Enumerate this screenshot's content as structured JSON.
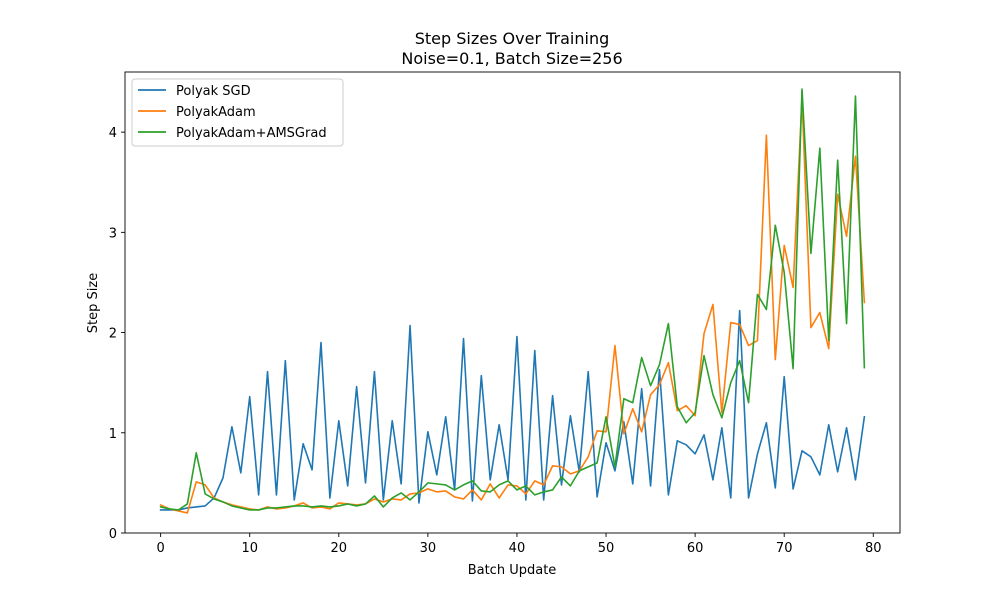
{
  "chart_data": {
    "type": "line",
    "title": "Step Sizes Over Training",
    "subtitle": "Noise=0.1, Batch Size=256",
    "xlabel": "Batch Update",
    "ylabel": "Step Size",
    "xlim": [
      -4,
      83
    ],
    "ylim": [
      0,
      4.6
    ],
    "x_ticks": [
      0,
      10,
      20,
      30,
      40,
      50,
      60,
      70,
      80
    ],
    "y_ticks": [
      0,
      1,
      2,
      3,
      4
    ],
    "grid": false,
    "legend_position": "top-left",
    "series": [
      {
        "name": "Polyak SGD",
        "color": "#1f77b4",
        "x": [
          0,
          1,
          2,
          3,
          4,
          5,
          6,
          7,
          8,
          9,
          10,
          11,
          12,
          13,
          14,
          15,
          16,
          17,
          18,
          19,
          20,
          21,
          22,
          23,
          24,
          25,
          26,
          27,
          28,
          29,
          30,
          31,
          32,
          33,
          34,
          35,
          36,
          37,
          38,
          39,
          40,
          41,
          42,
          43,
          44,
          45,
          46,
          47,
          48,
          49,
          50,
          51,
          52,
          53,
          54,
          55,
          56,
          57,
          58,
          59,
          60,
          61,
          62,
          63,
          64,
          65,
          66,
          67,
          68,
          69,
          70,
          71,
          72,
          73,
          74,
          75,
          76,
          77,
          78,
          79
        ],
        "y": [
          0.23,
          0.23,
          0.23,
          0.25,
          0.26,
          0.27,
          0.35,
          0.55,
          1.06,
          0.6,
          1.36,
          0.38,
          1.61,
          0.38,
          1.72,
          0.33,
          0.89,
          0.63,
          1.9,
          0.35,
          1.12,
          0.47,
          1.46,
          0.5,
          1.61,
          0.33,
          1.12,
          0.49,
          2.07,
          0.3,
          1.01,
          0.58,
          1.16,
          0.43,
          1.94,
          0.32,
          1.57,
          0.53,
          1.08,
          0.53,
          1.96,
          0.33,
          1.82,
          0.33,
          1.37,
          0.48,
          1.17,
          0.61,
          1.61,
          0.36,
          0.9,
          0.62,
          1.11,
          0.49,
          1.44,
          0.47,
          1.63,
          0.38,
          0.92,
          0.88,
          0.79,
          0.98,
          0.53,
          1.05,
          0.35,
          2.22,
          0.35,
          0.79,
          1.1,
          0.45,
          1.56,
          0.44,
          0.82,
          0.76,
          0.58,
          1.08,
          0.61,
          1.05,
          0.53,
          1.16
        ]
      },
      {
        "name": "PolyakAdam",
        "color": "#ff7f0e",
        "x": [
          0,
          1,
          2,
          3,
          4,
          5,
          6,
          7,
          8,
          9,
          10,
          11,
          12,
          13,
          14,
          15,
          16,
          17,
          18,
          19,
          20,
          21,
          22,
          23,
          24,
          25,
          26,
          27,
          28,
          29,
          30,
          31,
          32,
          33,
          34,
          35,
          36,
          37,
          38,
          39,
          40,
          41,
          42,
          43,
          44,
          45,
          46,
          47,
          48,
          49,
          50,
          51,
          52,
          53,
          54,
          55,
          56,
          57,
          58,
          59,
          60,
          61,
          62,
          63,
          64,
          65,
          66,
          67,
          68,
          69,
          70,
          71,
          72,
          73,
          74,
          75,
          76,
          77,
          78,
          79
        ],
        "y": [
          0.28,
          0.24,
          0.22,
          0.2,
          0.51,
          0.48,
          0.35,
          0.31,
          0.28,
          0.26,
          0.24,
          0.23,
          0.26,
          0.24,
          0.25,
          0.27,
          0.3,
          0.25,
          0.26,
          0.24,
          0.3,
          0.29,
          0.28,
          0.29,
          0.34,
          0.31,
          0.34,
          0.33,
          0.39,
          0.4,
          0.44,
          0.41,
          0.42,
          0.36,
          0.34,
          0.43,
          0.33,
          0.49,
          0.35,
          0.48,
          0.47,
          0.39,
          0.52,
          0.48,
          0.67,
          0.66,
          0.59,
          0.62,
          0.76,
          1.02,
          1.01,
          1.87,
          0.99,
          1.24,
          1.01,
          1.38,
          1.48,
          1.7,
          1.22,
          1.27,
          1.17,
          1.99,
          2.28,
          1.2,
          2.1,
          2.08,
          1.87,
          1.92,
          3.97,
          1.73,
          2.87,
          2.45,
          4.34,
          2.05,
          2.2,
          1.84,
          3.38,
          2.96,
          3.76,
          2.3
        ]
      },
      {
        "name": "PolyakAdam+AMSGrad",
        "color": "#2ca02c",
        "x": [
          0,
          1,
          2,
          3,
          4,
          5,
          6,
          7,
          8,
          9,
          10,
          11,
          12,
          13,
          14,
          15,
          16,
          17,
          18,
          19,
          20,
          21,
          22,
          23,
          24,
          25,
          26,
          27,
          28,
          29,
          30,
          31,
          32,
          33,
          34,
          35,
          36,
          37,
          38,
          39,
          40,
          41,
          42,
          43,
          44,
          45,
          46,
          47,
          48,
          49,
          50,
          51,
          52,
          53,
          54,
          55,
          56,
          57,
          58,
          59,
          60,
          61,
          62,
          63,
          64,
          65,
          66,
          67,
          68,
          69,
          70,
          71,
          72,
          73,
          74,
          75,
          76,
          77,
          78,
          79
        ],
        "y": [
          0.26,
          0.24,
          0.23,
          0.29,
          0.8,
          0.39,
          0.34,
          0.31,
          0.27,
          0.25,
          0.23,
          0.23,
          0.25,
          0.25,
          0.26,
          0.27,
          0.27,
          0.26,
          0.27,
          0.26,
          0.27,
          0.29,
          0.27,
          0.29,
          0.37,
          0.26,
          0.35,
          0.4,
          0.33,
          0.41,
          0.5,
          0.49,
          0.48,
          0.43,
          0.48,
          0.52,
          0.42,
          0.41,
          0.48,
          0.52,
          0.43,
          0.47,
          0.38,
          0.41,
          0.43,
          0.56,
          0.47,
          0.62,
          0.66,
          0.7,
          1.16,
          0.66,
          1.34,
          1.3,
          1.75,
          1.47,
          1.68,
          2.09,
          1.26,
          1.1,
          1.2,
          1.77,
          1.38,
          1.15,
          1.5,
          1.72,
          1.3,
          2.38,
          2.23,
          3.07,
          2.6,
          1.64,
          4.43,
          2.79,
          3.84,
          1.92,
          3.72,
          2.09,
          4.36,
          1.65
        ]
      }
    ]
  }
}
